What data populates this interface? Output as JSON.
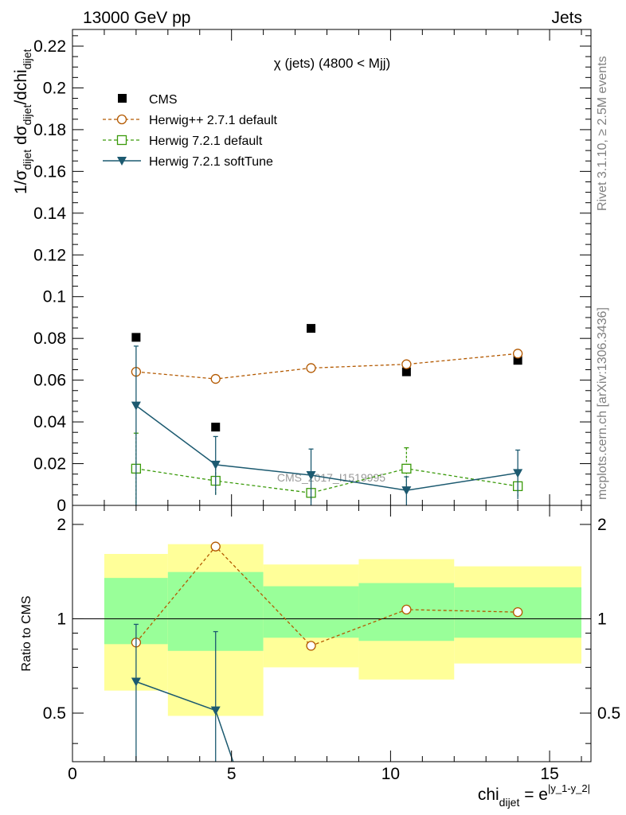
{
  "header": {
    "left": "13000 GeV pp",
    "right": "Jets"
  },
  "side_labels": {
    "rivet": "Rivet 3.1.10, ≥ 2.5M events",
    "mcplots": "mcplots.cern.ch [arXiv:1306.3436]"
  },
  "watermark": "CMS_2017_I1519995",
  "colors": {
    "data": "#000000",
    "herwigpp": "#b35900",
    "herwig721": "#3a9a0a",
    "softtune": "#1c5a70",
    "band_yellow": "#ffff99",
    "band_green": "#99ff99"
  },
  "chart_data": [
    {
      "type": "scatter",
      "panel": "main",
      "title": "χ (jets) (4800 < Mjj)",
      "ylabel_parts": {
        "a": "1/σ",
        "a_sub": "dijet",
        "b": " dσ",
        "b_sub": "dijet",
        "c": "/dchi",
        "c_sub": "dijet"
      },
      "ylim": [
        0,
        0.228
      ],
      "yticks": [
        {
          "v": 0,
          "label": "0"
        },
        {
          "v": 0.02,
          "label": "0.02"
        },
        {
          "v": 0.04,
          "label": "0.04"
        },
        {
          "v": 0.06,
          "label": "0.06"
        },
        {
          "v": 0.08,
          "label": "0.08"
        },
        {
          "v": 0.1,
          "label": "0.1"
        },
        {
          "v": 0.12,
          "label": "0.12"
        },
        {
          "v": 0.14,
          "label": "0.14"
        },
        {
          "v": 0.16,
          "label": "0.16"
        },
        {
          "v": 0.18,
          "label": "0.18"
        },
        {
          "v": 0.2,
          "label": "0.2"
        },
        {
          "v": 0.22,
          "label": "0.22"
        }
      ],
      "series": [
        {
          "name": "CMS",
          "style": "data",
          "x": [
            2,
            4.5,
            7.5,
            10.5,
            14
          ],
          "y": [
            0.0805,
            0.0375,
            0.0848,
            0.064,
            0.0695
          ]
        },
        {
          "name": "Herwig++ 2.7.1 default",
          "style": "herwigpp",
          "x": [
            2,
            4.5,
            7.5,
            10.5,
            14
          ],
          "y": [
            0.064,
            0.0606,
            0.0658,
            0.0676,
            0.0727
          ]
        },
        {
          "name": "Herwig 7.2.1 default",
          "style": "herwig721",
          "x": [
            2,
            4.5,
            7.5,
            10.5,
            14
          ],
          "y": [
            0.0176,
            0.0118,
            0.006,
            0.0176,
            0.0092
          ],
          "err_lo": [
            0.0176,
            0.0068,
            0.004,
            0.01,
            0.005
          ],
          "err_hi": [
            0.017,
            0.008,
            0.0,
            0.01,
            0.0
          ]
        },
        {
          "name": "Herwig 7.2.1 softTune",
          "style": "softtune",
          "x": [
            2,
            4.5,
            7.5,
            10.5,
            14
          ],
          "y": [
            0.0478,
            0.0195,
            0.0145,
            0.0072,
            0.0155
          ],
          "err_lo": [
            0.0478,
            0.0145,
            0.0145,
            0.0072,
            0.0125
          ],
          "err_hi": [
            0.0285,
            0.0135,
            0.0125,
            0.0065,
            0.011
          ]
        }
      ]
    },
    {
      "type": "scatter",
      "panel": "ratio",
      "ylabel": "Ratio to CMS",
      "xlabel_parts": {
        "base": "chi",
        "sub": "dijet",
        "eq": " = e",
        "sup": "|y_1-y_2|"
      },
      "xlim": [
        0,
        16.3
      ],
      "ylim": [
        0.35,
        2.3
      ],
      "xticks": [
        {
          "v": 0,
          "label": "0"
        },
        {
          "v": 5,
          "label": "5"
        },
        {
          "v": 10,
          "label": "10"
        },
        {
          "v": 15,
          "label": "15"
        }
      ],
      "yticks": [
        {
          "v": 0.5,
          "label": "0.5"
        },
        {
          "v": 1,
          "label": "1"
        },
        {
          "v": 2,
          "label": "2"
        }
      ],
      "bands": [
        {
          "x0": 1,
          "x1": 3,
          "y_lo": 0.59,
          "y_hi": 1.61,
          "g_lo": 0.83,
          "g_hi": 1.35
        },
        {
          "x0": 3,
          "x1": 6,
          "y_lo": 0.49,
          "y_hi": 1.73,
          "g_lo": 0.79,
          "g_hi": 1.41
        },
        {
          "x0": 6,
          "x1": 9,
          "y_lo": 0.7,
          "y_hi": 1.49,
          "g_lo": 0.87,
          "g_hi": 1.27
        },
        {
          "x0": 9,
          "x1": 12,
          "y_lo": 0.64,
          "y_hi": 1.55,
          "g_lo": 0.85,
          "g_hi": 1.3
        },
        {
          "x0": 12,
          "x1": 16,
          "y_lo": 0.72,
          "y_hi": 1.47,
          "g_lo": 0.87,
          "g_hi": 1.26
        }
      ],
      "series": [
        {
          "name": "Herwig++ 2.7.1 default",
          "style": "herwigpp",
          "x": [
            2,
            4.5,
            7.5,
            10.5,
            14
          ],
          "y": [
            0.84,
            1.7,
            0.82,
            1.07,
            1.05
          ]
        },
        {
          "name": "Herwig 7.2.1 softTune",
          "style": "softtune",
          "x": [
            2,
            4.5,
            5.05
          ],
          "y": [
            0.63,
            0.51,
            0.35
          ],
          "err_lo": [
            0.28,
            0.16,
            0
          ],
          "err_hi": [
            0.33,
            0.4,
            0
          ]
        }
      ]
    }
  ]
}
